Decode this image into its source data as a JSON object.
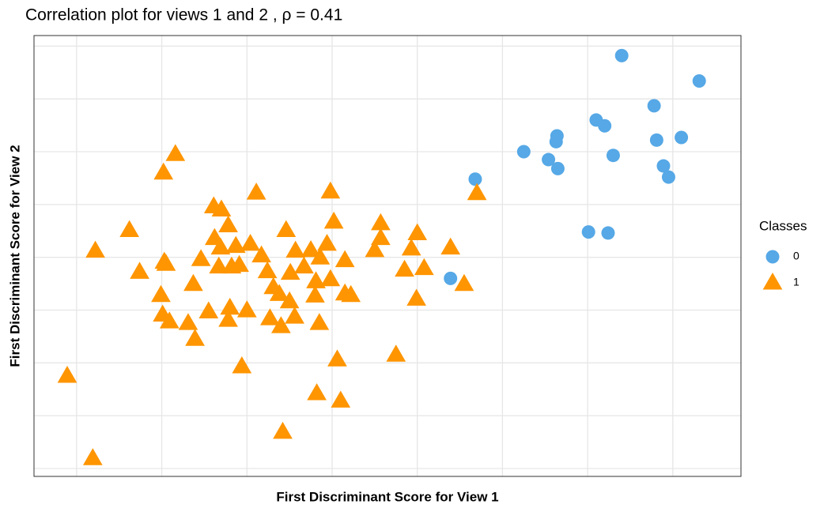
{
  "chart_data": {
    "type": "scatter",
    "title": "Correlation plot for views 1 and 2 , ρ = 0.41",
    "x_label": "First Discriminant Score for View 1",
    "y_label": "First Discriminant Score for View 2",
    "legend_title": "Classes",
    "legend_position": "right",
    "grid": true,
    "xlim": [
      -3.5,
      4.8
    ],
    "ylim": [
      -4.15,
      4.2
    ],
    "xticks": [
      -3,
      -2,
      -1,
      0,
      1,
      2,
      3,
      4
    ],
    "yticks": [
      -4,
      -3,
      -2,
      -1,
      0,
      1,
      2,
      3,
      4
    ],
    "series": [
      {
        "name": "0",
        "color": "#56a8e6",
        "marker": "circle",
        "x": [
          3.4,
          4.31,
          3.78,
          3.1,
          3.2,
          2.64,
          2.63,
          2.25,
          3.81,
          4.1,
          2.54,
          3.3,
          3.89,
          2.65,
          3.95,
          1.68,
          3.01,
          3.24,
          1.39
        ],
        "y": [
          3.82,
          3.34,
          2.87,
          2.6,
          2.49,
          2.3,
          2.19,
          2.0,
          2.22,
          2.27,
          1.85,
          1.93,
          1.73,
          1.68,
          1.52,
          1.48,
          0.48,
          0.46,
          -0.4
        ]
      },
      {
        "name": "1",
        "color": "#ff9500",
        "marker": "triangle",
        "x": [
          -1.84,
          -1.98,
          -0.89,
          -0.02,
          1.7,
          -1.39,
          -1.3,
          0.02,
          0.57,
          -2.38,
          -1.22,
          -0.54,
          1.0,
          0.57,
          -1.38,
          -0.96,
          -2.78,
          -1.31,
          -1.13,
          -0.43,
          -0.25,
          -0.06,
          0.5,
          0.93,
          1.39,
          -0.83,
          -1.97,
          -1.54,
          -0.14,
          -1.95,
          0.15,
          -1.33,
          -1.18,
          -1.09,
          -0.33,
          -2.26,
          -0.76,
          -0.49,
          0.85,
          1.08,
          -1.63,
          -0.19,
          -0.02,
          1.55,
          -0.69,
          -2.01,
          -0.62,
          0.15,
          0.22,
          -0.2,
          0.99,
          -1.45,
          -1.2,
          -1.0,
          -0.5,
          -1.99,
          -1.91,
          -1.69,
          -1.22,
          -0.73,
          -0.44,
          -0.6,
          -0.15,
          -1.61,
          0.06,
          0.75,
          -1.06,
          -3.11,
          -0.18,
          0.1,
          -0.58,
          -2.81
        ],
        "y": [
          1.95,
          1.6,
          1.22,
          1.24,
          1.21,
          0.96,
          0.9,
          0.67,
          0.64,
          0.51,
          0.6,
          0.51,
          0.45,
          0.36,
          0.36,
          0.25,
          0.12,
          0.18,
          0.21,
          0.12,
          0.13,
          0.25,
          0.13,
          0.16,
          0.18,
          0.03,
          -0.09,
          -0.04,
          -0.01,
          -0.13,
          -0.06,
          -0.18,
          -0.18,
          -0.15,
          -0.18,
          -0.28,
          -0.27,
          -0.3,
          -0.24,
          -0.21,
          -0.51,
          -0.46,
          -0.42,
          -0.51,
          -0.57,
          -0.72,
          -0.7,
          -0.69,
          -0.72,
          -0.73,
          -0.79,
          -1.03,
          -0.96,
          -1.01,
          -0.84,
          -1.09,
          -1.22,
          -1.25,
          -1.19,
          -1.16,
          -1.13,
          -1.31,
          -1.25,
          -1.55,
          -1.94,
          -1.85,
          -2.07,
          -2.25,
          -2.58,
          -2.72,
          -3.31,
          -3.81
        ]
      }
    ]
  }
}
